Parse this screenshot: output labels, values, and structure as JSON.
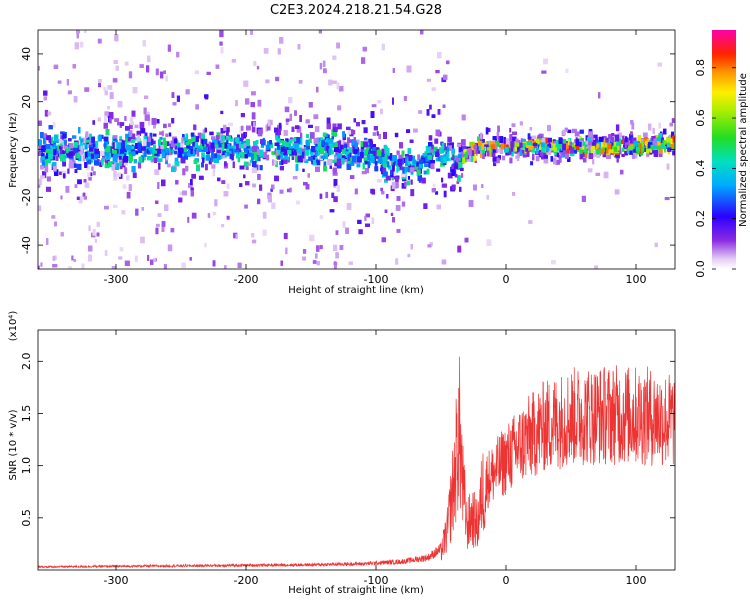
{
  "title": "C2E3.2024.218.21.54.G28",
  "chart_data": [
    {
      "type": "heatmap",
      "xlabel": "Height of straight line (km)",
      "ylabel": "Frequency (Hz)",
      "xlim": [
        -360,
        130
      ],
      "ylim": [
        -50,
        50
      ],
      "xticks": [
        -300,
        -200,
        -100,
        0,
        100
      ],
      "yticks": [
        -40,
        -20,
        0,
        20,
        40
      ],
      "colorbar": {
        "label": "Normalized spectral amplitude",
        "range": [
          0,
          0.95
        ],
        "ticks": [
          "0.0",
          "0.2",
          "0.4",
          "0.6",
          "0.8"
        ],
        "tick_values": [
          0,
          0.2,
          0.4,
          0.6,
          0.8
        ]
      },
      "ridge_frequency": [
        {
          "x": -360,
          "f": 0
        },
        {
          "x": -130,
          "f": 0
        },
        {
          "x": -110,
          "f": -2
        },
        {
          "x": -90,
          "f": -5
        },
        {
          "x": -75,
          "f": -8
        },
        {
          "x": -60,
          "f": -4
        },
        {
          "x": -45,
          "f": 0
        },
        {
          "x": -38,
          "f": -10
        },
        {
          "x": -32,
          "f": -3
        },
        {
          "x": -20,
          "f": 1
        },
        {
          "x": 0,
          "f": 1
        },
        {
          "x": 50,
          "f": 1
        },
        {
          "x": 100,
          "f": 1
        },
        {
          "x": 130,
          "f": 3
        }
      ]
    },
    {
      "type": "line",
      "xlabel": "Height of straight line (km)",
      "ylabel": "SNR (10 * v/v)",
      "multiplier": "(x10⁴)",
      "xlim": [
        -360,
        130
      ],
      "ylim": [
        0,
        2.3
      ],
      "xticks": [
        -300,
        -200,
        -100,
        0,
        100
      ],
      "yticks": [
        "0.5",
        "1.0",
        "1.5",
        "2.0"
      ],
      "ytick_values": [
        0.5,
        1.0,
        1.5,
        2.0
      ],
      "series": [
        {
          "color": "#ee3333",
          "envelope": [
            {
              "x": -360,
              "y": 0.03
            },
            {
              "x": -250,
              "y": 0.04
            },
            {
              "x": -150,
              "y": 0.05
            },
            {
              "x": -110,
              "y": 0.06
            },
            {
              "x": -80,
              "y": 0.08
            },
            {
              "x": -60,
              "y": 0.12
            },
            {
              "x": -50,
              "y": 0.2
            },
            {
              "x": -45,
              "y": 0.45
            },
            {
              "x": -40,
              "y": 1.0
            },
            {
              "x": -36,
              "y": 1.6
            },
            {
              "x": -33,
              "y": 0.9
            },
            {
              "x": -30,
              "y": 0.5
            },
            {
              "x": -26,
              "y": 0.6
            },
            {
              "x": -22,
              "y": 0.5
            },
            {
              "x": -18,
              "y": 0.9
            },
            {
              "x": -10,
              "y": 1.0
            },
            {
              "x": 0,
              "y": 1.15
            },
            {
              "x": 15,
              "y": 1.35
            },
            {
              "x": 30,
              "y": 1.5
            },
            {
              "x": 50,
              "y": 1.6
            },
            {
              "x": 80,
              "y": 1.62
            },
            {
              "x": 110,
              "y": 1.6
            },
            {
              "x": 130,
              "y": 1.55
            }
          ]
        }
      ]
    }
  ]
}
